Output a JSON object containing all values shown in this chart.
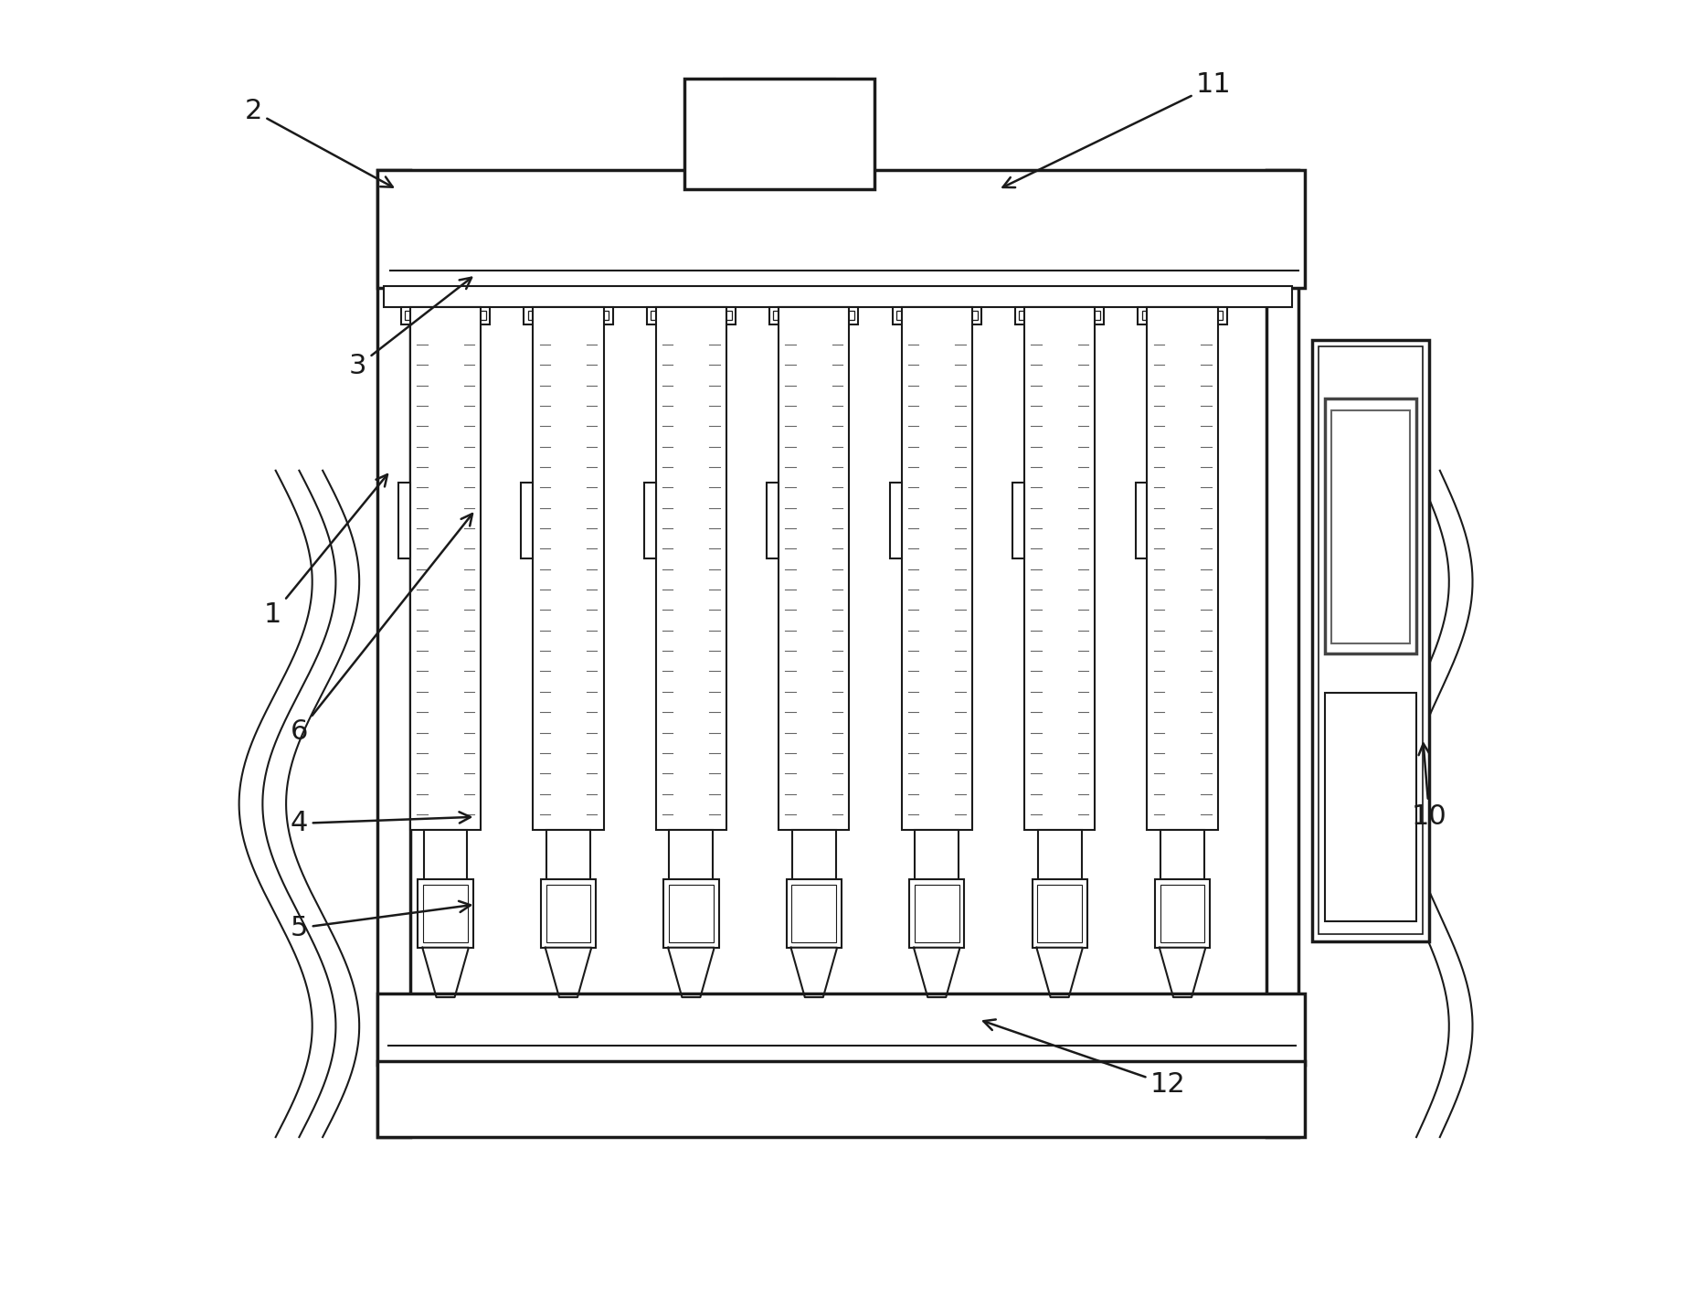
{
  "bg_color": "#ffffff",
  "line_color": "#1a1a1a",
  "gray_color": "#aaaaaa",
  "light_gray": "#cccccc",
  "label_color": "#1a1a1a"
}
